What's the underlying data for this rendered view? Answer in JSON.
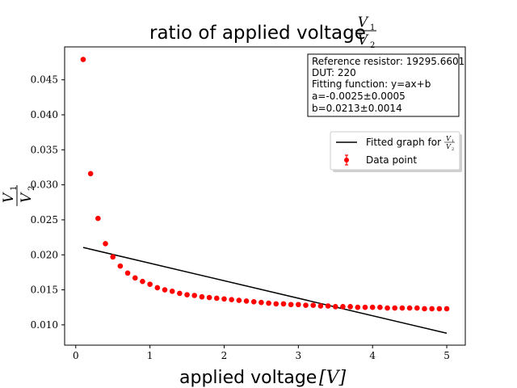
{
  "chart_data": {
    "type": "scatter",
    "title": {
      "prefix": "ratio of applied voltage",
      "frac_num": "V",
      "frac_num_sub": "1",
      "frac_den": "V",
      "frac_den_sub": "2"
    },
    "xlabel": {
      "text": "applied voltage",
      "unit": "[V]"
    },
    "ylabel": {
      "frac_num": "V",
      "frac_num_sub": "1",
      "frac_den": "V",
      "frac_den_sub": "2"
    },
    "xlim": [
      -0.15,
      5.25
    ],
    "ylim": [
      0.0071,
      0.0497
    ],
    "x_ticks": [
      0,
      1,
      2,
      3,
      4,
      5
    ],
    "x_tick_labels": [
      "0",
      "1",
      "2",
      "3",
      "4",
      "5"
    ],
    "y_ticks": [
      0.01,
      0.015,
      0.02,
      0.025,
      0.03,
      0.035,
      0.04,
      0.045
    ],
    "y_tick_labels": [
      "0.010",
      "0.015",
      "0.020",
      "0.025",
      "0.030",
      "0.035",
      "0.040",
      "0.045"
    ],
    "grid": false,
    "legend_position": "upper-right",
    "series": [
      {
        "name": "Fitted graph for",
        "kind": "line",
        "color": "#000000",
        "x": [
          0.1,
          5.0
        ],
        "y": [
          0.02105,
          0.0088
        ]
      },
      {
        "name": "Data point",
        "kind": "scatter",
        "color": "#ff0000",
        "x": [
          0.1,
          0.2,
          0.3,
          0.4,
          0.5,
          0.6,
          0.7,
          0.8,
          0.9,
          1.0,
          1.1,
          1.2,
          1.3,
          1.4,
          1.5,
          1.6,
          1.7,
          1.8,
          1.9,
          2.0,
          2.1,
          2.2,
          2.3,
          2.4,
          2.5,
          2.6,
          2.7,
          2.8,
          2.9,
          3.0,
          3.1,
          3.2,
          3.3,
          3.4,
          3.5,
          3.6,
          3.7,
          3.8,
          3.9,
          4.0,
          4.1,
          4.2,
          4.3,
          4.4,
          4.5,
          4.6,
          4.7,
          4.8,
          4.9,
          5.0
        ],
        "y": [
          0.0479,
          0.0316,
          0.0252,
          0.0216,
          0.0197,
          0.0184,
          0.0174,
          0.0167,
          0.0162,
          0.0158,
          0.0153,
          0.015,
          0.0148,
          0.0145,
          0.0143,
          0.0142,
          0.014,
          0.0139,
          0.0138,
          0.0137,
          0.0136,
          0.0135,
          0.0134,
          0.0133,
          0.0132,
          0.0131,
          0.013,
          0.013,
          0.0129,
          0.0129,
          0.0128,
          0.0128,
          0.0127,
          0.0127,
          0.0126,
          0.0126,
          0.0126,
          0.0125,
          0.0125,
          0.0125,
          0.0125,
          0.0124,
          0.0124,
          0.0124,
          0.0124,
          0.0124,
          0.0123,
          0.0123,
          0.0123,
          0.0123
        ]
      }
    ],
    "info_box": [
      "Reference resistor: 19295.6601",
      "DUT: 220",
      "Fitting function: y=ax+b",
      "a=-0.0025±0.0005",
      "b=0.0213±0.0014"
    ],
    "legend": {
      "line_label": "Fitted graph for",
      "frac_num": "V",
      "frac_num_sub": "1",
      "frac_den": "V",
      "frac_den_sub": "2",
      "point_label": "Data point"
    }
  }
}
